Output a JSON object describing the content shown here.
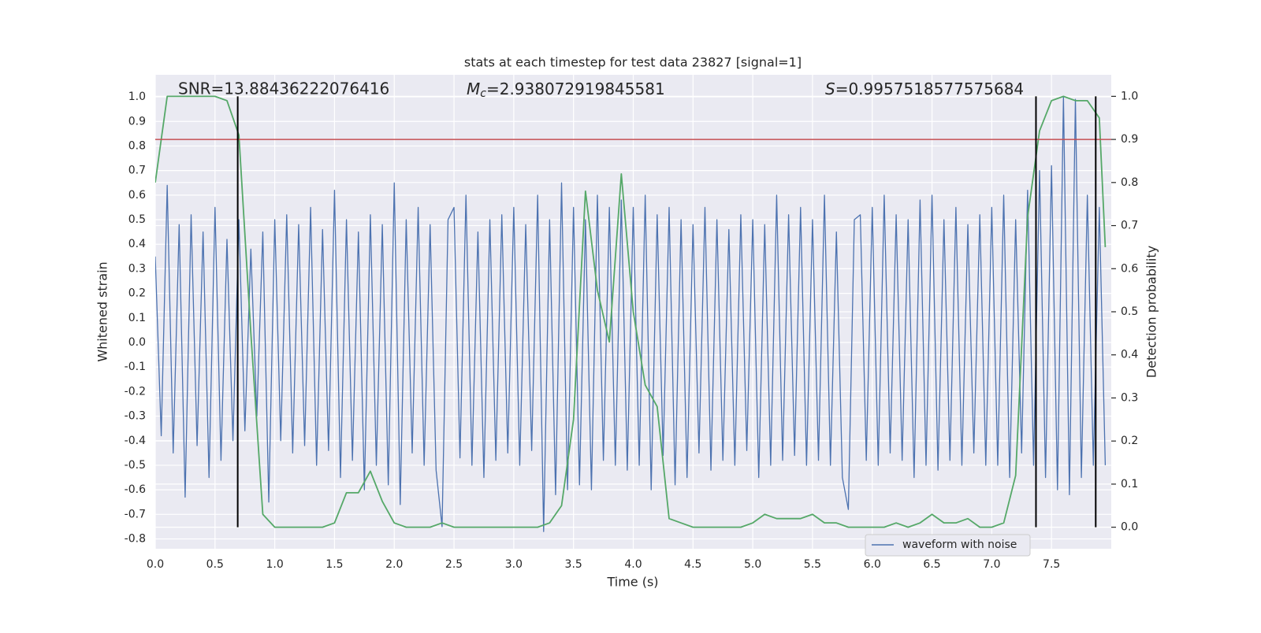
{
  "chart_data": {
    "type": "line",
    "title": "stats at each timestep for test data 23827 [signal=1]",
    "xlabel": "Time (s)",
    "ylabel": "Whitened strain",
    "y2label": "Detection probability",
    "xlim": [
      0,
      8
    ],
    "ylim": [
      -0.84,
      1.09
    ],
    "y2lim": [
      -0.05,
      1.05
    ],
    "xticks": [
      {
        "value": 0,
        "label": "0.0"
      },
      0.5,
      {
        "value": 1,
        "label": "1.0"
      },
      1.5,
      {
        "value": 2,
        "label": "2.0"
      },
      2.5,
      {
        "value": 3,
        "label": "3.0"
      },
      3.5,
      {
        "value": 4,
        "label": "4.0"
      },
      4.5,
      {
        "value": 5,
        "label": "5.0"
      },
      5.5,
      {
        "value": 6,
        "label": "6.0"
      },
      6.5,
      {
        "value": 7,
        "label": "7.0"
      },
      7.5
    ],
    "yticks": [
      -0.8,
      -0.7,
      -0.6,
      -0.5,
      -0.4,
      -0.3,
      -0.2,
      -0.1,
      {
        "value": 0,
        "label": "0.0"
      },
      0.1,
      0.2,
      0.3,
      0.4,
      0.5,
      0.6,
      0.7,
      0.8,
      0.9,
      {
        "value": 1,
        "label": "1.0"
      }
    ],
    "y2ticks": [
      {
        "value": 0,
        "label": "0.0"
      },
      0.1,
      0.2,
      0.3,
      0.4,
      0.5,
      0.6,
      0.7,
      0.8,
      0.9,
      {
        "value": 1,
        "label": "1.0"
      }
    ],
    "grid": true,
    "legend": "lower right",
    "annotations": [
      {
        "text": "SNR=13.88436222076416"
      },
      {
        "symbol": "M",
        "subscript": "c",
        "text": "=2.938072919845581"
      },
      {
        "symbol": "S",
        "text": "=0.9957518577575684"
      }
    ],
    "hline": {
      "value": 0.9,
      "axis": "y2",
      "color": "#c44e52"
    },
    "vlines": {
      "x": [
        0.69,
        7.37,
        7.87
      ],
      "y2min": 0,
      "y2max": 1,
      "color": "#000000"
    },
    "series": [
      {
        "name": "waveform with noise",
        "color": "#4c72b0",
        "x": [
          0,
          0.05,
          0.1,
          0.15,
          0.2,
          0.25,
          0.3,
          0.35,
          0.4,
          0.45,
          0.5,
          0.55,
          0.6,
          0.65,
          0.7,
          0.75,
          0.8,
          0.85,
          0.9,
          0.95,
          1,
          1.05,
          1.1,
          1.15,
          1.2,
          1.25,
          1.3,
          1.35,
          1.4,
          1.45,
          1.5,
          1.55,
          1.6,
          1.65,
          1.7,
          1.75,
          1.8,
          1.85,
          1.9,
          1.95,
          2,
          2.05,
          2.1,
          2.15,
          2.2,
          2.25,
          2.3,
          2.35,
          2.4,
          2.45,
          2.5,
          2.55,
          2.6,
          2.65,
          2.7,
          2.75,
          2.8,
          2.85,
          2.9,
          2.95,
          3,
          3.05,
          3.1,
          3.15,
          3.2,
          3.25,
          3.3,
          3.35,
          3.4,
          3.45,
          3.5,
          3.55,
          3.6,
          3.65,
          3.7,
          3.75,
          3.8,
          3.85,
          3.9,
          3.95,
          4,
          4.05,
          4.1,
          4.15,
          4.2,
          4.25,
          4.3,
          4.35,
          4.4,
          4.45,
          4.5,
          4.55,
          4.6,
          4.65,
          4.7,
          4.75,
          4.8,
          4.85,
          4.9,
          4.95,
          5,
          5.05,
          5.1,
          5.15,
          5.2,
          5.25,
          5.3,
          5.35,
          5.4,
          5.45,
          5.5,
          5.55,
          5.6,
          5.65,
          5.7,
          5.75,
          5.8,
          5.85,
          5.9,
          5.95,
          6,
          6.05,
          6.1,
          6.15,
          6.2,
          6.25,
          6.3,
          6.35,
          6.4,
          6.45,
          6.5,
          6.55,
          6.6,
          6.65,
          6.7,
          6.75,
          6.8,
          6.85,
          6.9,
          6.95,
          7,
          7.05,
          7.1,
          7.15,
          7.2,
          7.25,
          7.3,
          7.35,
          7.4,
          7.45,
          7.5,
          7.55,
          7.6,
          7.65,
          7.7,
          7.75,
          7.8,
          7.85,
          7.9,
          7.95
        ],
        "values": [
          0.35,
          -0.38,
          0.64,
          -0.45,
          0.48,
          -0.63,
          0.52,
          -0.42,
          0.45,
          -0.55,
          0.55,
          -0.48,
          0.42,
          -0.4,
          0.5,
          -0.36,
          0.38,
          -0.3,
          0.45,
          -0.65,
          0.5,
          -0.4,
          0.52,
          -0.45,
          0.48,
          -0.42,
          0.55,
          -0.5,
          0.46,
          -0.44,
          0.62,
          -0.55,
          0.5,
          -0.48,
          0.45,
          -0.6,
          0.52,
          -0.5,
          0.48,
          -0.58,
          0.65,
          -0.66,
          0.5,
          -0.45,
          0.55,
          -0.5,
          0.48,
          -0.52,
          -0.75,
          0.5,
          0.55,
          -0.47,
          0.6,
          -0.5,
          0.45,
          -0.55,
          0.5,
          -0.48,
          0.52,
          -0.45,
          0.55,
          -0.5,
          0.48,
          -0.44,
          0.6,
          -0.77,
          0.5,
          -0.62,
          0.65,
          -0.6,
          0.55,
          -0.58,
          0.5,
          -0.6,
          0.6,
          -0.48,
          0.55,
          -0.5,
          0.58,
          -0.52,
          0.55,
          -0.5,
          0.6,
          -0.6,
          0.52,
          -0.46,
          0.55,
          -0.58,
          0.5,
          -0.55,
          0.48,
          -0.45,
          0.55,
          -0.52,
          0.5,
          -0.48,
          0.46,
          -0.5,
          0.52,
          -0.44,
          0.5,
          -0.55,
          0.48,
          -0.5,
          0.6,
          -0.48,
          0.52,
          -0.46,
          0.55,
          -0.5,
          0.5,
          -0.48,
          0.6,
          -0.5,
          0.45,
          -0.55,
          -0.68,
          0.5,
          0.52,
          -0.48,
          0.55,
          -0.5,
          0.6,
          -0.45,
          0.52,
          -0.48,
          0.5,
          -0.55,
          0.58,
          -0.5,
          0.6,
          -0.52,
          0.5,
          -0.48,
          0.55,
          -0.5,
          0.48,
          -0.45,
          0.52,
          -0.5,
          0.55,
          -0.5,
          0.6,
          -0.55,
          0.5,
          -0.45,
          0.62,
          -0.5,
          0.7,
          -0.55,
          0.72,
          -0.6,
          1.0,
          -0.62,
          0.99,
          -0.55,
          0.6,
          -0.5,
          0.55,
          -0.5
        ]
      },
      {
        "color": "#55a868",
        "axis": "y2",
        "x": [
          0,
          0.1,
          0.2,
          0.3,
          0.4,
          0.5,
          0.6,
          0.7,
          0.8,
          0.9,
          1,
          1.1,
          1.2,
          1.3,
          1.4,
          1.5,
          1.6,
          1.7,
          1.8,
          1.9,
          2,
          2.1,
          2.2,
          2.3,
          2.4,
          2.5,
          2.6,
          2.7,
          2.8,
          2.9,
          3,
          3.1,
          3.2,
          3.3,
          3.4,
          3.5,
          3.6,
          3.7,
          3.8,
          3.9,
          4,
          4.1,
          4.2,
          4.3,
          4.4,
          4.5,
          4.6,
          4.7,
          4.8,
          4.9,
          5,
          5.1,
          5.2,
          5.3,
          5.4,
          5.5,
          5.6,
          5.7,
          5.8,
          5.9,
          6,
          6.1,
          6.2,
          6.3,
          6.4,
          6.5,
          6.6,
          6.7,
          6.8,
          6.9,
          7,
          7.1,
          7.2,
          7.3,
          7.4,
          7.5,
          7.6,
          7.7,
          7.8,
          7.9,
          7.95
        ],
        "values": [
          0.8,
          1.0,
          1.0,
          1.0,
          1.0,
          1.0,
          0.99,
          0.91,
          0.45,
          0.03,
          0,
          0,
          0,
          0,
          0,
          0.01,
          0.08,
          0.08,
          0.13,
          0.06,
          0.01,
          0,
          0,
          0,
          0.01,
          0,
          0,
          0,
          0,
          0,
          0,
          0,
          0,
          0.01,
          0.05,
          0.25,
          0.78,
          0.55,
          0.43,
          0.82,
          0.5,
          0.33,
          0.28,
          0.02,
          0.01,
          0,
          0,
          0,
          0,
          0,
          0.01,
          0.03,
          0.02,
          0.02,
          0.02,
          0.03,
          0.01,
          0.01,
          0,
          0,
          0,
          0,
          0.01,
          0,
          0.01,
          0.03,
          0.01,
          0.01,
          0.02,
          0,
          0,
          0.01,
          0.12,
          0.72,
          0.92,
          0.99,
          1.0,
          0.99,
          0.99,
          0.95,
          0.65
        ]
      }
    ]
  }
}
